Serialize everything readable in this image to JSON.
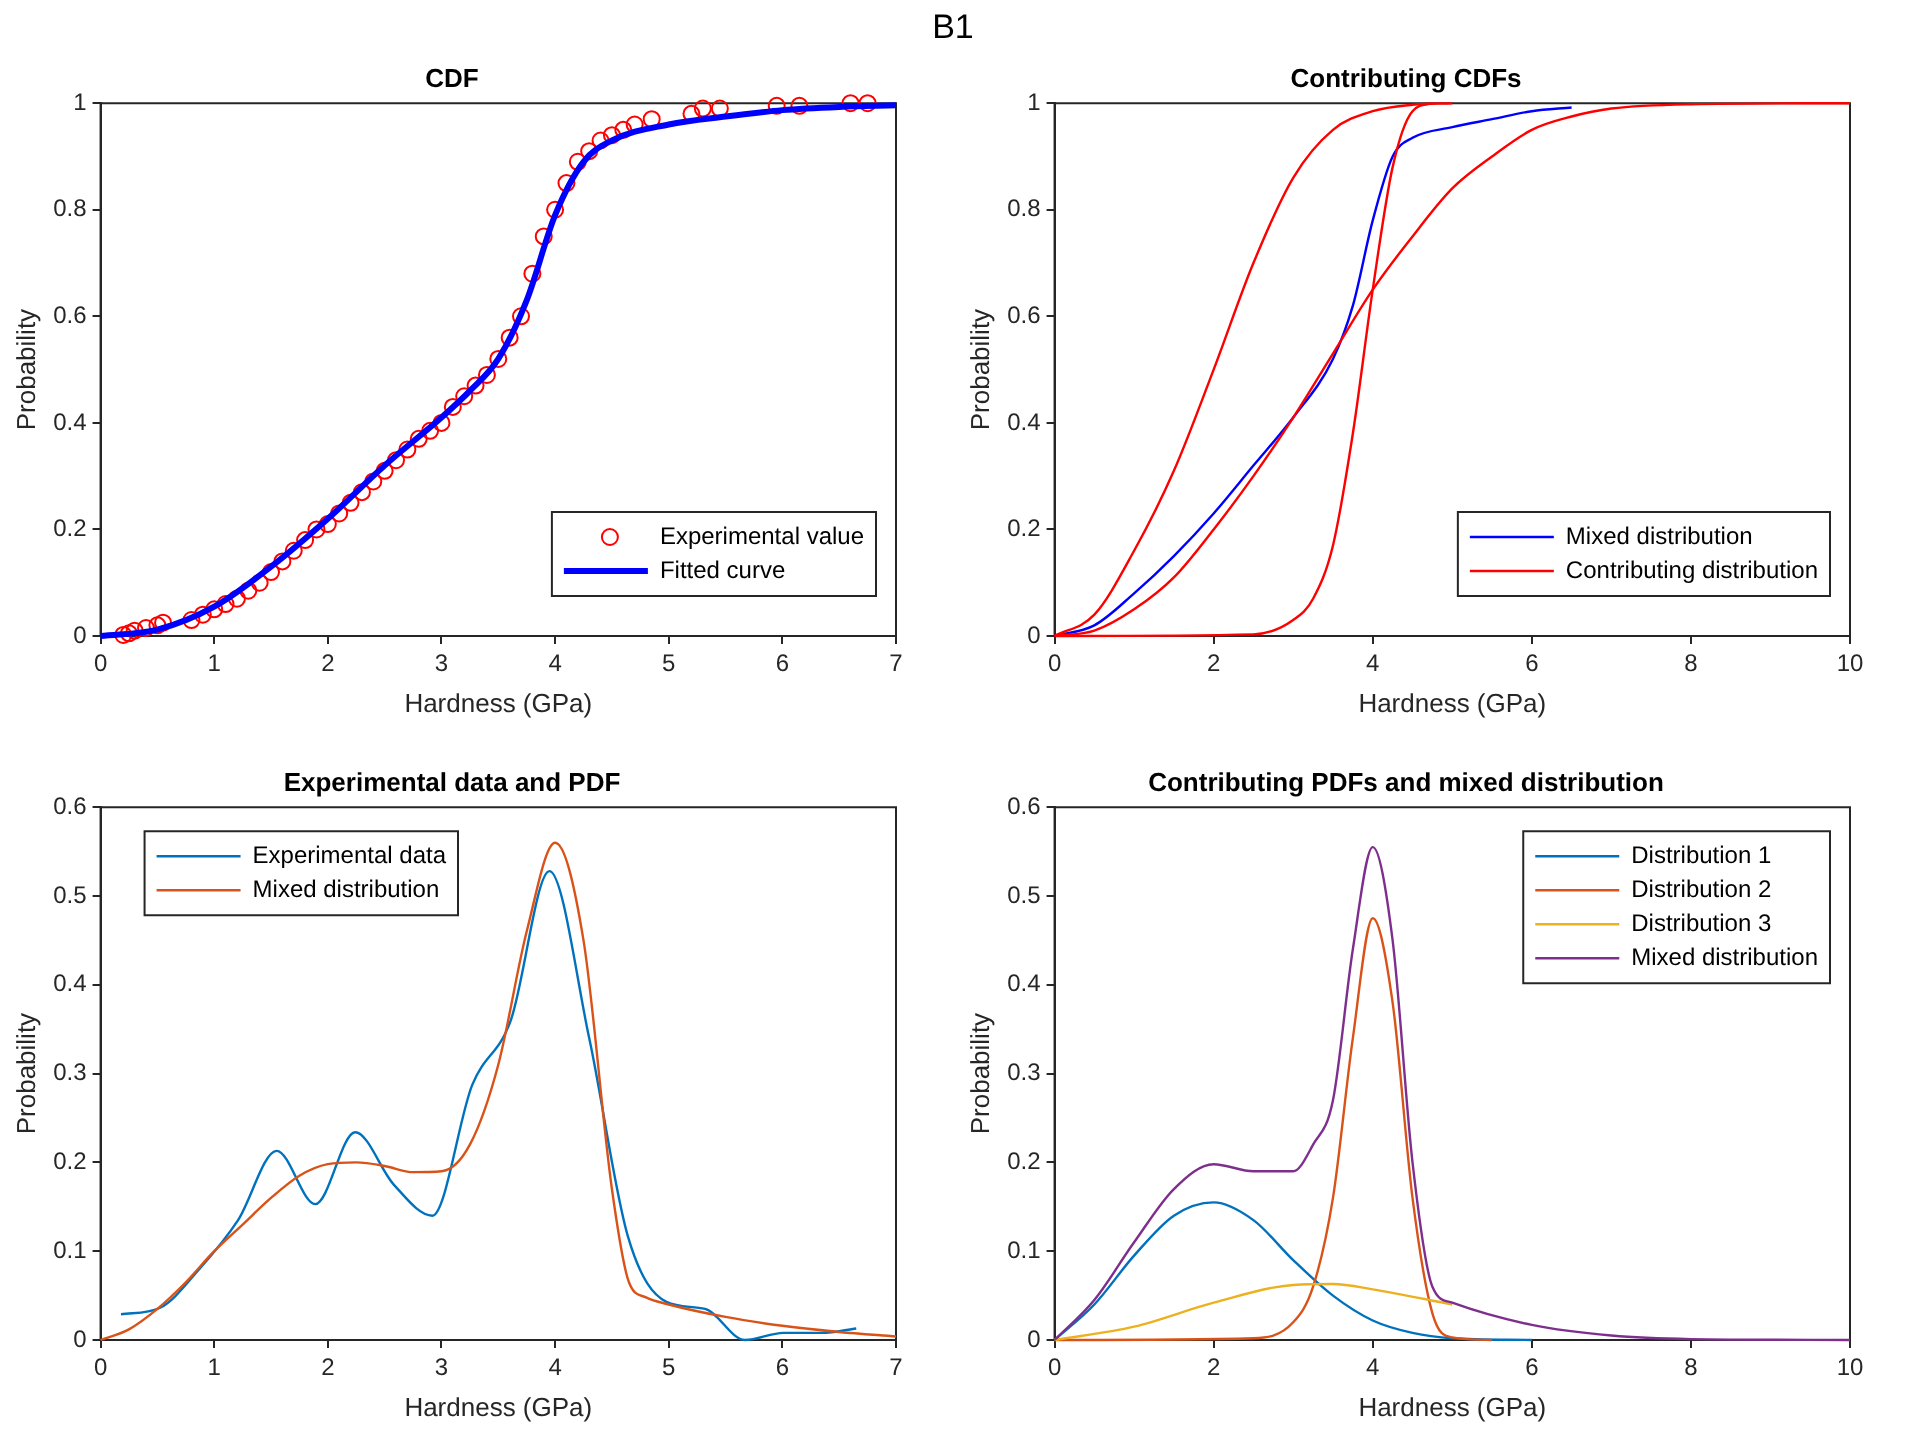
{
  "chart_data": [
    {
      "type": "line",
      "title": "CDF",
      "annotations": [
        "B1"
      ],
      "xlabel": "Hardness (GPa)",
      "ylabel": "Probability",
      "xlim": [
        0,
        7
      ],
      "xticks": [
        0,
        1,
        2,
        3,
        4,
        5,
        6,
        7
      ],
      "ylim": [
        0,
        1
      ],
      "yticks": [
        0,
        0.2,
        0.4,
        0.6,
        0.8,
        1
      ],
      "legend": "bottom right",
      "series": [
        {
          "name": "Experimental value",
          "type": "scatter",
          "marker": "circle",
          "color": "#ff0000",
          "x": [
            0.2,
            0.25,
            0.3,
            0.4,
            0.5,
            0.55,
            0.8,
            0.9,
            1.0,
            1.1,
            1.2,
            1.3,
            1.4,
            1.5,
            1.6,
            1.7,
            1.8,
            1.9,
            2.0,
            2.1,
            2.2,
            2.3,
            2.4,
            2.5,
            2.6,
            2.7,
            2.8,
            2.9,
            3.0,
            3.1,
            3.2,
            3.3,
            3.4,
            3.5,
            3.6,
            3.7,
            3.8,
            3.9,
            4.0,
            4.1,
            4.2,
            4.3,
            4.4,
            4.5,
            4.6,
            4.7,
            4.85,
            5.2,
            5.3,
            5.45,
            5.95,
            6.15,
            6.6,
            6.75
          ],
          "values": [
            0.002,
            0.005,
            0.01,
            0.015,
            0.02,
            0.025,
            0.03,
            0.04,
            0.05,
            0.06,
            0.07,
            0.085,
            0.1,
            0.12,
            0.14,
            0.16,
            0.18,
            0.2,
            0.21,
            0.23,
            0.25,
            0.27,
            0.29,
            0.31,
            0.33,
            0.35,
            0.37,
            0.385,
            0.4,
            0.43,
            0.45,
            0.47,
            0.49,
            0.52,
            0.56,
            0.6,
            0.68,
            0.75,
            0.8,
            0.85,
            0.89,
            0.91,
            0.93,
            0.94,
            0.95,
            0.96,
            0.97,
            0.98,
            0.99,
            0.99,
            0.995,
            0.995,
            1,
            1
          ]
        },
        {
          "name": "Fitted curve",
          "type": "line",
          "color": "#0000ff",
          "x": [
            0,
            0.5,
            1,
            1.5,
            2,
            2.5,
            3,
            3.25,
            3.5,
            3.75,
            4,
            4.25,
            4.5,
            5,
            5.5,
            6,
            6.5,
            7
          ],
          "values": [
            0,
            0.012,
            0.055,
            0.13,
            0.22,
            0.32,
            0.41,
            0.46,
            0.52,
            0.63,
            0.79,
            0.89,
            0.93,
            0.96,
            0.975,
            0.987,
            0.993,
            0.996
          ]
        }
      ]
    },
    {
      "type": "line",
      "title": "Contributing CDFs",
      "xlabel": "Hardness (GPa)",
      "ylabel": "Probability",
      "xlim": [
        0,
        10
      ],
      "xticks": [
        0,
        2,
        4,
        6,
        8,
        10
      ],
      "ylim": [
        0,
        1
      ],
      "yticks": [
        0,
        0.2,
        0.4,
        0.6,
        0.8,
        1
      ],
      "legend": "bottom right",
      "series": [
        {
          "name": "Mixed distribution",
          "color": "#0000ff",
          "x": [
            0,
            0.5,
            1,
            1.5,
            2,
            2.5,
            3,
            3.5,
            3.75,
            4,
            4.25,
            4.5,
            5,
            5.5,
            6,
            6.5
          ],
          "values": [
            0,
            0.02,
            0.08,
            0.15,
            0.23,
            0.32,
            0.41,
            0.52,
            0.62,
            0.78,
            0.9,
            0.935,
            0.955,
            0.97,
            0.985,
            0.992
          ]
        },
        {
          "name": "Contributing distribution",
          "color": "#ff0000",
          "x": [
            0,
            0.5,
            1,
            1.5,
            2,
            2.5,
            3,
            3.5,
            4,
            4.5,
            5
          ],
          "values": [
            0,
            0.04,
            0.16,
            0.31,
            0.5,
            0.7,
            0.86,
            0.95,
            0.985,
            0.997,
            1
          ]
        },
        {
          "color": "#ff0000",
          "x": [
            0,
            2.5,
            3,
            3.25,
            3.5,
            3.75,
            4,
            4.25,
            4.5,
            4.75
          ],
          "values": [
            0,
            0.003,
            0.03,
            0.07,
            0.17,
            0.38,
            0.65,
            0.88,
            0.985,
            1
          ]
        },
        {
          "color": "#ff0000",
          "x": [
            0,
            0.5,
            1,
            1.5,
            2,
            2.5,
            3,
            3.5,
            4,
            4.5,
            5,
            5.5,
            6,
            6.5,
            7,
            8,
            10
          ],
          "values": [
            0,
            0.01,
            0.05,
            0.11,
            0.2,
            0.3,
            0.41,
            0.53,
            0.65,
            0.75,
            0.84,
            0.9,
            0.95,
            0.975,
            0.99,
            0.998,
            1
          ]
        }
      ]
    },
    {
      "type": "line",
      "title": "Experimental data and PDF",
      "xlabel": "Hardness (GPa)",
      "ylabel": "Probability",
      "xlim": [
        0,
        7
      ],
      "xticks": [
        0,
        1,
        2,
        3,
        4,
        5,
        6,
        7
      ],
      "ylim": [
        0,
        0.6
      ],
      "yticks": [
        0,
        0.1,
        0.2,
        0.3,
        0.4,
        0.5,
        0.6
      ],
      "legend": "top left",
      "series": [
        {
          "name": "Experimental data",
          "color": "#0072bd",
          "x": [
            0.18,
            0.52,
            0.87,
            1.21,
            1.55,
            1.89,
            2.24,
            2.58,
            2.92,
            3.27,
            3.61,
            3.95,
            4.3,
            4.64,
            4.98,
            5.32,
            5.67,
            6.01,
            6.35,
            6.65
          ],
          "values": [
            0.029,
            0.036,
            0.08,
            0.135,
            0.213,
            0.153,
            0.234,
            0.175,
            0.14,
            0.287,
            0.36,
            0.528,
            0.34,
            0.117,
            0.043,
            0.035,
            0,
            0.008,
            0.008,
            0.013
          ]
        },
        {
          "name": "Mixed distribution",
          "color": "#d95319",
          "x": [
            0,
            0.25,
            0.5,
            0.75,
            1,
            1.25,
            1.5,
            1.75,
            2,
            2.25,
            2.5,
            2.75,
            3,
            3.25,
            3.5,
            3.75,
            4,
            4.25,
            4.5,
            4.65,
            4.8,
            5,
            5.5,
            6,
            6.5,
            7
          ],
          "values": [
            0,
            0.012,
            0.035,
            0.065,
            0.1,
            0.13,
            0.16,
            0.185,
            0.198,
            0.2,
            0.196,
            0.189,
            0.19,
            0.22,
            0.31,
            0.46,
            0.56,
            0.45,
            0.17,
            0.065,
            0.048,
            0.04,
            0.026,
            0.016,
            0.009,
            0.004
          ]
        }
      ]
    },
    {
      "type": "line",
      "title": "Contributing PDFs and mixed distribution",
      "xlabel": "Hardness (GPa)",
      "ylabel": "Probability",
      "xlim": [
        0,
        10
      ],
      "xticks": [
        0,
        2,
        4,
        6,
        8,
        10
      ],
      "ylim": [
        0,
        0.6
      ],
      "yticks": [
        0,
        0.1,
        0.2,
        0.3,
        0.4,
        0.5,
        0.6
      ],
      "legend": "top right",
      "series": [
        {
          "name": "Distribution 1",
          "color": "#0072bd",
          "x": [
            0,
            0.5,
            1,
            1.5,
            2,
            2.5,
            3,
            3.5,
            4,
            4.5,
            5,
            6
          ],
          "values": [
            0,
            0.04,
            0.095,
            0.14,
            0.155,
            0.135,
            0.09,
            0.05,
            0.022,
            0.008,
            0.002,
            0
          ]
        },
        {
          "name": "Distribution 2",
          "color": "#d95319",
          "x": [
            0,
            2.5,
            3,
            3.25,
            3.5,
            3.75,
            4,
            4.25,
            4.5,
            4.75,
            5,
            5.5
          ],
          "values": [
            0,
            0.002,
            0.02,
            0.06,
            0.16,
            0.34,
            0.475,
            0.38,
            0.16,
            0.03,
            0.003,
            0
          ]
        },
        {
          "name": "Distribution 3",
          "color": "#edb120",
          "x": [
            0,
            1,
            2,
            3,
            3.5,
            4,
            5
          ],
          "values": [
            0,
            0.015,
            0.042,
            0.062,
            0.063,
            0.057,
            0.04
          ]
        },
        {
          "name": "Mixed distribution",
          "color": "#7e2f8e",
          "x": [
            0,
            0.5,
            1,
            1.5,
            2,
            2.5,
            3,
            3.25,
            3.5,
            3.75,
            4,
            4.25,
            4.5,
            4.75,
            5,
            6,
            7,
            8,
            10
          ],
          "values": [
            0,
            0.045,
            0.11,
            0.17,
            0.198,
            0.19,
            0.19,
            0.22,
            0.27,
            0.44,
            0.555,
            0.45,
            0.2,
            0.06,
            0.042,
            0.017,
            0.005,
            0.001,
            0
          ]
        }
      ]
    }
  ]
}
